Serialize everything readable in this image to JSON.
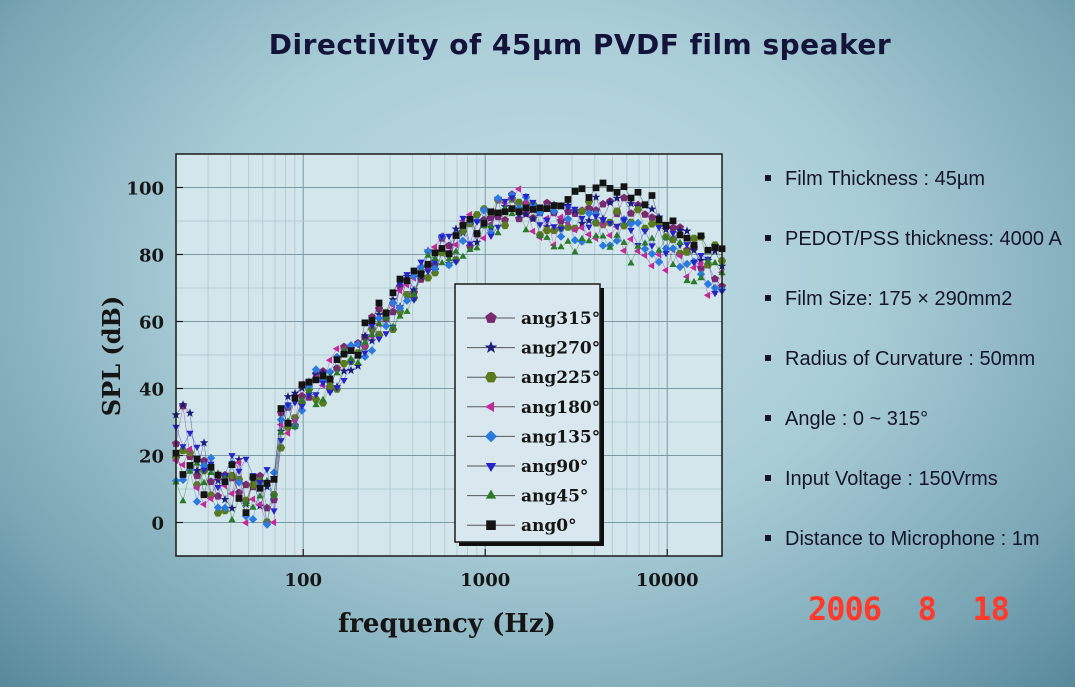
{
  "slide": {
    "title": "Directivity of 45µm PVDF film speaker",
    "notes": [
      "Film Thickness : 45µm",
      "PEDOT/PSS thickness: 4000 A",
      "Film Size: 175 × 290mm2",
      "Radius of Curvature : 50mm",
      "Angle : 0 ~ 315°",
      "Input Voltage : 150Vrms",
      "Distance to Microphone : 1m"
    ],
    "date_stamp": "2006  8  18"
  },
  "chart_data": {
    "type": "scatter",
    "title": "Directivity of 45µm PVDF film speaker",
    "xlabel": "frequency (Hz)",
    "ylabel": "SPL (dB)",
    "xscale": "log",
    "xlim": [
      20,
      20000
    ],
    "ylim": [
      -10,
      110
    ],
    "x_ticks": [
      100,
      1000,
      10000
    ],
    "y_ticks": [
      0,
      20,
      40,
      60,
      80,
      100
    ],
    "grid": true,
    "legend_position": "center",
    "series_points_per_decade": 26,
    "series": [
      {
        "name": "ang315°",
        "marker": "pentagon",
        "color": "#7a2a6e",
        "anchors": [
          [
            20,
            32
          ],
          [
            30,
            12
          ],
          [
            45,
            8
          ],
          [
            73,
            9
          ],
          [
            74,
            30
          ],
          [
            100,
            36
          ],
          [
            200,
            52
          ],
          [
            500,
            78
          ],
          [
            1000,
            90
          ],
          [
            1500,
            95
          ],
          [
            2000,
            91
          ],
          [
            3000,
            94
          ],
          [
            5000,
            95
          ],
          [
            10000,
            88
          ],
          [
            20000,
            72
          ]
        ],
        "jitter": 4,
        "band": [
          [
            20,
            68
          ],
          [
            75,
            68
          ],
          [
            5000,
            5
          ],
          [
            20000,
            14
          ]
        ]
      },
      {
        "name": "ang270°",
        "marker": "star",
        "color": "#1c1c7a",
        "anchors": [
          [
            20,
            34
          ],
          [
            30,
            16
          ],
          [
            45,
            10
          ],
          [
            73,
            12
          ],
          [
            74,
            31
          ],
          [
            100,
            36
          ],
          [
            200,
            52
          ],
          [
            500,
            78
          ],
          [
            1000,
            90
          ],
          [
            1500,
            96
          ],
          [
            2000,
            92
          ],
          [
            3000,
            93
          ],
          [
            5000,
            94
          ],
          [
            10000,
            88
          ],
          [
            20000,
            76
          ]
        ],
        "jitter": 4,
        "band": [
          [
            20,
            70
          ],
          [
            75,
            70
          ],
          [
            5000,
            5
          ],
          [
            20000,
            15
          ]
        ]
      },
      {
        "name": "ang225°",
        "marker": "hexagon",
        "color": "#5a7a1e",
        "anchors": [
          [
            20,
            22
          ],
          [
            30,
            10
          ],
          [
            45,
            4
          ],
          [
            73,
            6
          ],
          [
            74,
            26
          ],
          [
            100,
            33
          ],
          [
            200,
            50
          ],
          [
            500,
            76
          ],
          [
            1000,
            90
          ],
          [
            1500,
            95
          ],
          [
            2000,
            90
          ],
          [
            3000,
            92
          ],
          [
            5000,
            92
          ],
          [
            10000,
            86
          ],
          [
            20000,
            78
          ]
        ],
        "jitter": 4,
        "band": [
          [
            20,
            72
          ],
          [
            75,
            72
          ],
          [
            5000,
            5
          ],
          [
            20000,
            16
          ]
        ]
      },
      {
        "name": "ang180°",
        "marker": "triangle-left",
        "color": "#c22a9a",
        "anchors": [
          [
            20,
            26
          ],
          [
            30,
            12
          ],
          [
            45,
            8
          ],
          [
            73,
            10
          ],
          [
            74,
            30
          ],
          [
            100,
            36
          ],
          [
            200,
            52
          ],
          [
            500,
            77
          ],
          [
            1000,
            90
          ],
          [
            1500,
            95
          ],
          [
            2000,
            88
          ],
          [
            3000,
            86
          ],
          [
            5000,
            85
          ],
          [
            10000,
            78
          ],
          [
            20000,
            70
          ]
        ],
        "jitter": 5,
        "band": [
          [
            20,
            74
          ],
          [
            75,
            74
          ],
          [
            5000,
            5
          ],
          [
            20000,
            18
          ]
        ]
      },
      {
        "name": "ang135°",
        "marker": "diamond",
        "color": "#2a7ae0",
        "anchors": [
          [
            20,
            22
          ],
          [
            30,
            12
          ],
          [
            45,
            8
          ],
          [
            73,
            9
          ],
          [
            74,
            29
          ],
          [
            100,
            36
          ],
          [
            200,
            52
          ],
          [
            500,
            78
          ],
          [
            1000,
            90
          ],
          [
            1500,
            95
          ],
          [
            2000,
            90
          ],
          [
            3000,
            88
          ],
          [
            5000,
            87
          ],
          [
            10000,
            82
          ],
          [
            20000,
            74
          ]
        ],
        "jitter": 5,
        "band": [
          [
            20,
            70
          ],
          [
            75,
            70
          ],
          [
            5000,
            5
          ],
          [
            20000,
            16
          ]
        ]
      },
      {
        "name": "ang90°",
        "marker": "triangle-down",
        "color": "#2424c8",
        "anchors": [
          [
            20,
            26
          ],
          [
            30,
            14
          ],
          [
            45,
            10
          ],
          [
            73,
            10
          ],
          [
            74,
            30
          ],
          [
            100,
            36
          ],
          [
            200,
            52
          ],
          [
            500,
            78
          ],
          [
            1000,
            90
          ],
          [
            1500,
            95
          ],
          [
            2000,
            91
          ],
          [
            3000,
            90
          ],
          [
            5000,
            86
          ],
          [
            10000,
            84
          ],
          [
            20000,
            72
          ]
        ],
        "jitter": 5,
        "band": [
          [
            20,
            72
          ],
          [
            75,
            72
          ],
          [
            5000,
            5
          ],
          [
            20000,
            16
          ]
        ]
      },
      {
        "name": "ang45°",
        "marker": "triangle-up",
        "color": "#2a7a2a",
        "anchors": [
          [
            20,
            18
          ],
          [
            30,
            8
          ],
          [
            45,
            6
          ],
          [
            73,
            8
          ],
          [
            74,
            28
          ],
          [
            100,
            34
          ],
          [
            200,
            50
          ],
          [
            500,
            76
          ],
          [
            1000,
            89
          ],
          [
            1500,
            94
          ],
          [
            2000,
            88
          ],
          [
            3000,
            84
          ],
          [
            5000,
            82
          ],
          [
            10000,
            80
          ],
          [
            20000,
            72
          ]
        ],
        "jitter": 5,
        "band": [
          [
            20,
            74
          ],
          [
            75,
            74
          ],
          [
            5000,
            5
          ],
          [
            20000,
            18
          ]
        ]
      },
      {
        "name": "ang0°",
        "marker": "square",
        "color": "#141414",
        "anchors": [
          [
            20,
            20
          ],
          [
            30,
            12
          ],
          [
            45,
            10
          ],
          [
            73,
            10
          ],
          [
            74,
            32
          ],
          [
            100,
            37
          ],
          [
            200,
            54
          ],
          [
            500,
            80
          ],
          [
            1000,
            91
          ],
          [
            1500,
            96
          ],
          [
            2000,
            93
          ],
          [
            3000,
            96
          ],
          [
            5000,
            99
          ],
          [
            7000,
            100
          ],
          [
            10000,
            90
          ],
          [
            20000,
            80
          ]
        ],
        "jitter": 3,
        "band": [
          [
            20,
            68
          ],
          [
            75,
            68
          ],
          [
            5000,
            5
          ],
          [
            20000,
            12
          ]
        ]
      }
    ]
  }
}
